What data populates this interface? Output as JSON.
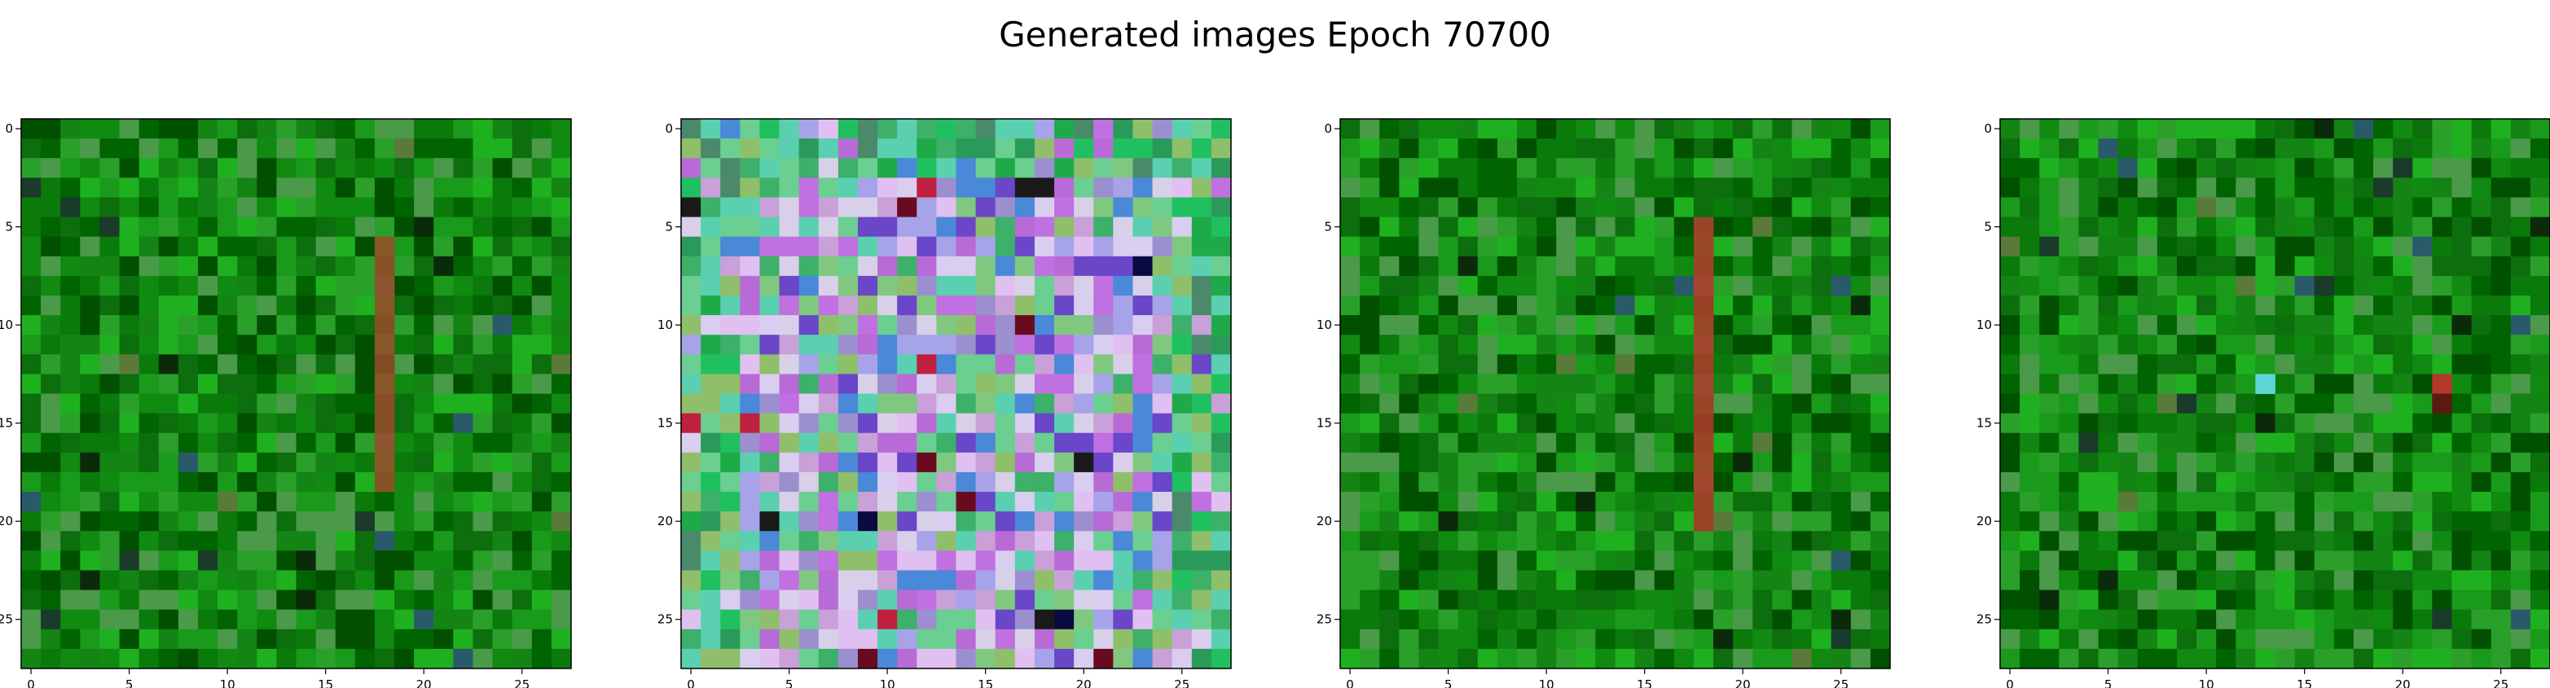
{
  "figure": {
    "title": "Generated images Epoch 70700"
  },
  "chart_data": {
    "type": "heatmap",
    "description_of_content": "",
    "grid_size": 28,
    "xlim": [
      -0.5,
      27.5
    ],
    "ylim": [
      27.5,
      -0.5
    ],
    "xticks": [
      "0",
      "5",
      "10",
      "15",
      "20",
      "25"
    ],
    "yticks": [
      "0",
      "5",
      "10",
      "15",
      "20",
      "25"
    ],
    "panels": [
      {
        "palette": "green",
        "features": [
          {
            "kind": "streak",
            "col": 18,
            "rows": [
              6,
              18
            ],
            "color": "#9a4a2a"
          }
        ]
      },
      {
        "palette": "multicolor",
        "features": []
      },
      {
        "palette": "green",
        "features": [
          {
            "kind": "streak",
            "col": 18,
            "rows": [
              5,
              20
            ],
            "color": "#b03a2a"
          }
        ]
      },
      {
        "palette": "green",
        "features": [
          {
            "kind": "spot",
            "col": 13,
            "row": 13,
            "color": "#5ed6d6"
          },
          {
            "kind": "spot",
            "col": 22,
            "row": 13,
            "color": "#b23a2a"
          },
          {
            "kind": "spot",
            "col": 22,
            "row": 14,
            "color": "#5a1a10"
          }
        ]
      }
    ],
    "palettes": {
      "green": [
        "#006400",
        "#0a7a0a",
        "#108a10",
        "#1a9a1a",
        "#0c6e0c",
        "#2aa02a",
        "#4a9a4a",
        "#005000",
        "#148414",
        "#1fb01f"
      ],
      "multicolor": [
        "#a7a3e8",
        "#d9cdf0",
        "#b86bd6",
        "#6a46c8",
        "#3db06a",
        "#8fbf6a",
        "#5ad0b0",
        "#c9a0d8",
        "#e0c0f0",
        "#9b8fd0",
        "#6acf90",
        "#d8d0e8",
        "#4a88d8",
        "#c070e0",
        "#80c880"
      ]
    }
  }
}
